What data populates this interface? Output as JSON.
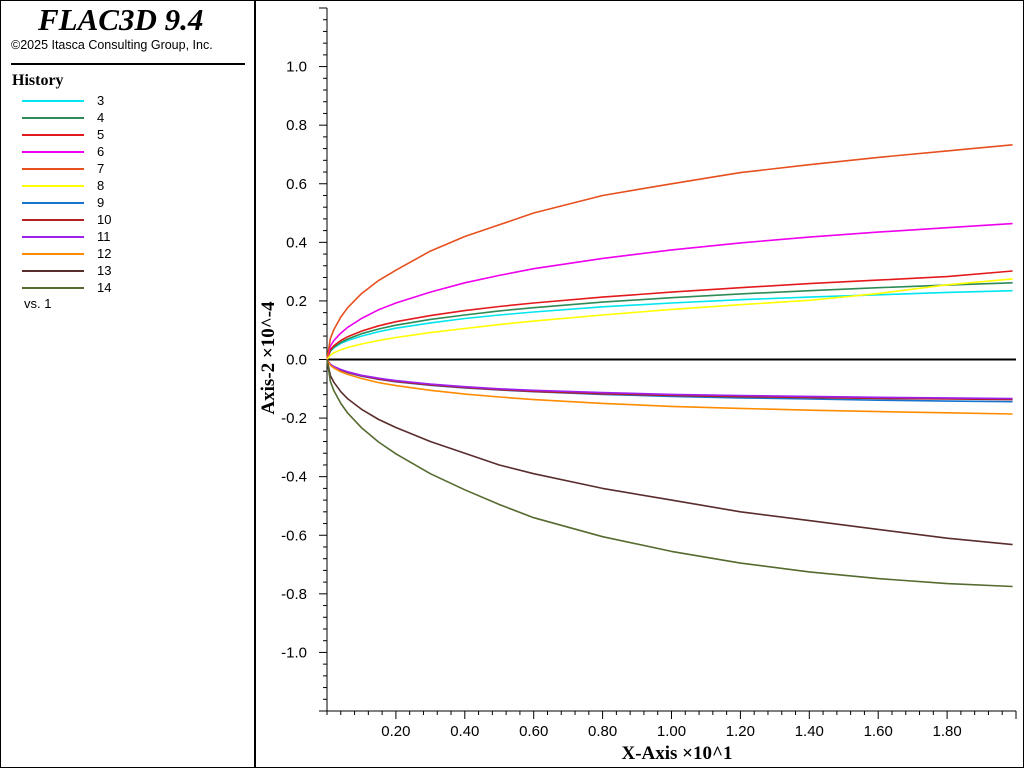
{
  "app": {
    "title": "FLAC3D 9.4",
    "copyright": "©2025 Itasca Consulting Group, Inc."
  },
  "legend": {
    "heading": "History",
    "vs_label": "vs. 1"
  },
  "chart_data": {
    "type": "line",
    "xlabel": "X-Axis ×10^1",
    "ylabel": "Axis-2 ×10^-4",
    "xlim": [
      0,
      2.0
    ],
    "ylim": [
      -1.2,
      1.2
    ],
    "xticks": [
      0.2,
      0.4,
      0.6,
      0.8,
      1.0,
      1.2,
      1.4,
      1.6,
      1.8
    ],
    "xtick_labels": [
      "0.20",
      "0.40",
      "0.60",
      "0.80",
      "1.00",
      "1.20",
      "1.40",
      "1.60",
      "1.80"
    ],
    "yticks": [
      1.0,
      0.8,
      0.6,
      0.4,
      0.2,
      0.0,
      -0.2,
      -0.4,
      -0.6,
      -0.8,
      -1.0
    ],
    "ytick_labels": [
      "1.0",
      "0.8",
      "0.6",
      "0.4",
      "0.2",
      "0.0",
      "-0.2",
      "-0.4",
      "-0.6",
      "-0.8",
      "-1.0"
    ],
    "x": [
      0,
      0.01,
      0.02,
      0.04,
      0.06,
      0.1,
      0.15,
      0.2,
      0.3,
      0.4,
      0.5,
      0.6,
      0.8,
      1.0,
      1.2,
      1.4,
      1.6,
      1.8,
      1.99
    ],
    "series": [
      {
        "name": "3",
        "color": "#00e5ee",
        "values": [
          0,
          0.028,
          0.04,
          0.055,
          0.065,
          0.08,
          0.095,
          0.107,
          0.125,
          0.14,
          0.152,
          0.162,
          0.18,
          0.193,
          0.204,
          0.213,
          0.221,
          0.229,
          0.235
        ]
      },
      {
        "name": "4",
        "color": "#2e8b57",
        "values": [
          0,
          0.03,
          0.043,
          0.058,
          0.07,
          0.088,
          0.104,
          0.117,
          0.137,
          0.152,
          0.166,
          0.177,
          0.196,
          0.211,
          0.224,
          0.235,
          0.245,
          0.254,
          0.262
        ]
      },
      {
        "name": "5",
        "color": "#e31a1c",
        "values": [
          0,
          0.033,
          0.047,
          0.065,
          0.078,
          0.097,
          0.115,
          0.129,
          0.15,
          0.167,
          0.181,
          0.193,
          0.213,
          0.23,
          0.245,
          0.259,
          0.271,
          0.283,
          0.302
        ]
      },
      {
        "name": "6",
        "color": "#ee00ee",
        "values": [
          0,
          0.046,
          0.065,
          0.09,
          0.11,
          0.14,
          0.17,
          0.193,
          0.23,
          0.262,
          0.287,
          0.31,
          0.345,
          0.374,
          0.398,
          0.418,
          0.435,
          0.45,
          0.464
        ]
      },
      {
        "name": "7",
        "color": "#e6501e",
        "values": [
          0,
          0.072,
          0.102,
          0.145,
          0.177,
          0.225,
          0.27,
          0.305,
          0.37,
          0.42,
          0.46,
          0.5,
          0.56,
          0.6,
          0.638,
          0.665,
          0.69,
          0.712,
          0.733
        ]
      },
      {
        "name": "8",
        "color": "#ffff00",
        "values": [
          0,
          0.015,
          0.023,
          0.033,
          0.041,
          0.053,
          0.065,
          0.075,
          0.092,
          0.106,
          0.119,
          0.131,
          0.152,
          0.171,
          0.187,
          0.202,
          0.225,
          0.255,
          0.275
        ]
      },
      {
        "name": "9",
        "color": "#1874cd",
        "values": [
          0,
          -0.018,
          -0.026,
          -0.037,
          -0.045,
          -0.057,
          -0.068,
          -0.076,
          -0.088,
          -0.097,
          -0.104,
          -0.11,
          -0.119,
          -0.126,
          -0.131,
          -0.135,
          -0.139,
          -0.142,
          -0.144
        ]
      },
      {
        "name": "10",
        "color": "#b22222",
        "values": [
          0,
          -0.017,
          -0.025,
          -0.036,
          -0.044,
          -0.056,
          -0.067,
          -0.075,
          -0.087,
          -0.096,
          -0.103,
          -0.109,
          -0.117,
          -0.123,
          -0.127,
          -0.13,
          -0.133,
          -0.135,
          -0.137
        ]
      },
      {
        "name": "11",
        "color": "#a020f0",
        "values": [
          0,
          -0.016,
          -0.024,
          -0.034,
          -0.042,
          -0.054,
          -0.064,
          -0.072,
          -0.084,
          -0.093,
          -0.1,
          -0.105,
          -0.113,
          -0.119,
          -0.123,
          -0.126,
          -0.129,
          -0.131,
          -0.133
        ]
      },
      {
        "name": "12",
        "color": "#ff8c00",
        "values": [
          0,
          -0.02,
          -0.029,
          -0.042,
          -0.051,
          -0.065,
          -0.079,
          -0.089,
          -0.105,
          -0.118,
          -0.128,
          -0.137,
          -0.15,
          -0.16,
          -0.167,
          -0.173,
          -0.178,
          -0.182,
          -0.186
        ]
      },
      {
        "name": "13",
        "color": "#5a2d2d",
        "values": [
          0,
          -0.055,
          -0.078,
          -0.11,
          -0.134,
          -0.17,
          -0.205,
          -0.232,
          -0.28,
          -0.32,
          -0.36,
          -0.39,
          -0.44,
          -0.48,
          -0.52,
          -0.55,
          -0.58,
          -0.61,
          -0.632
        ]
      },
      {
        "name": "14",
        "color": "#556b2f",
        "values": [
          0,
          -0.075,
          -0.107,
          -0.15,
          -0.183,
          -0.233,
          -0.282,
          -0.322,
          -0.39,
          -0.445,
          -0.495,
          -0.54,
          -0.605,
          -0.655,
          -0.695,
          -0.725,
          -0.748,
          -0.765,
          -0.775
        ]
      }
    ]
  }
}
